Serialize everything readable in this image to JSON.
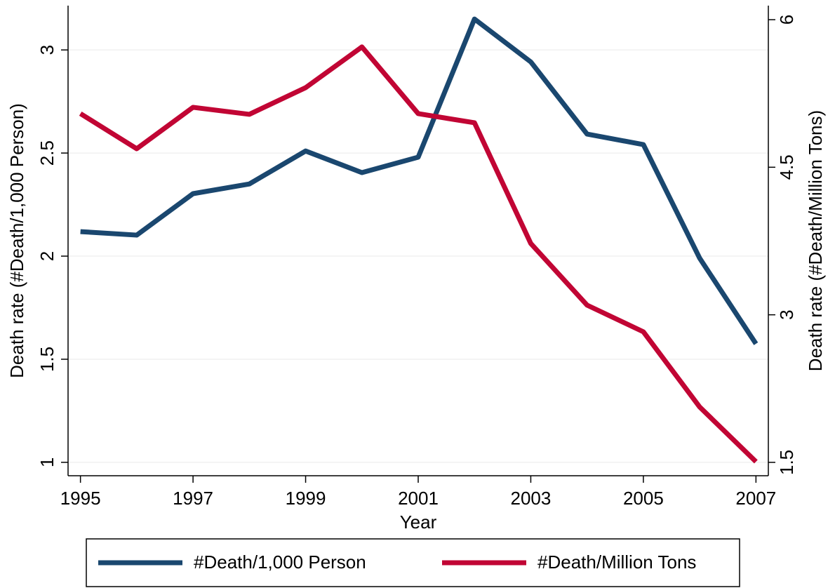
{
  "chart_data": {
    "type": "line",
    "x_label": "Year",
    "y_label": "Death rate (#Death/1,000 Person)",
    "y2_label": "Death rate (#Death/Million Tons)",
    "x": [
      1995,
      1996,
      1997,
      1998,
      1999,
      2000,
      2001,
      2002,
      2003,
      2004,
      2005,
      2006,
      2007
    ],
    "series": [
      {
        "name": "#Death/1,000 Person",
        "color": "#1a476f",
        "axis": "y",
        "values": [
          2.119,
          2.102,
          2.303,
          2.35,
          2.51,
          2.405,
          2.48,
          3.15,
          2.942,
          2.592,
          2.541,
          1.99,
          1.575
        ]
      },
      {
        "name": "#Death/Million Tons",
        "color": "#c10534",
        "axis": "y2",
        "values": [
          5.045,
          4.688,
          5.109,
          5.038,
          5.309,
          5.723,
          5.045,
          4.952,
          3.725,
          3.098,
          2.827,
          2.063,
          1.507
        ]
      }
    ],
    "xlim": [
      1994.78,
      2007.22
    ],
    "xticks": [
      1995,
      1997,
      1999,
      2001,
      2003,
      2005,
      2007
    ],
    "ylim": [
      0.935,
      3.215
    ],
    "yticks": [
      1,
      1.5,
      2,
      2.5,
      3
    ],
    "y2lim": [
      1.364,
      6.143
    ],
    "y2ticks": [
      1.5,
      3,
      4.5,
      6
    ],
    "grid": true,
    "legend": "bottom"
  }
}
